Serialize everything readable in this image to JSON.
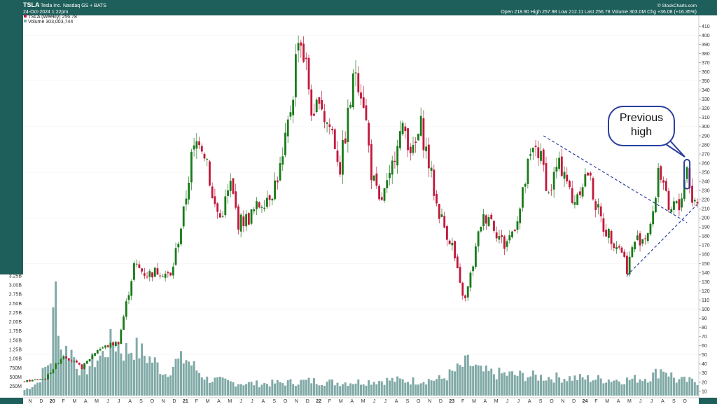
{
  "header": {
    "symbol": "TSLA",
    "company": "Tesla Inc.",
    "exchange": "Nasdaq GS + BATS",
    "date": "24-Oct-2024 1:22pm",
    "copyright": "© StockCharts.com",
    "quote": "Open 218.90  High 257.98  Low 212.11  Last 256.78  Volume 303.0M  Chg +36.08 (+16.35%)"
  },
  "legend": {
    "price_label": "TSLA (Weekly) 256.78",
    "volume_label": "Volume 303,003,744"
  },
  "annotation": {
    "line1": "Previous",
    "line2": "high"
  },
  "colors": {
    "up": "#1a7a1a",
    "down": "#c2183c",
    "volume": "#7fa9a6",
    "trendline": "#2a3f9e",
    "frame": "#1e5f5b"
  },
  "chart_data": {
    "type": "candlestick",
    "title": "TSLA Tesla Inc. (Weekly)",
    "ylim": [
      10,
      415
    ],
    "price_ticks": [
      10,
      20,
      30,
      40,
      50,
      60,
      70,
      80,
      90,
      100,
      110,
      120,
      130,
      140,
      150,
      160,
      170,
      180,
      190,
      200,
      210,
      220,
      230,
      240,
      250,
      260,
      270,
      280,
      290,
      300,
      310,
      320,
      330,
      340,
      350,
      360,
      370,
      380,
      390,
      400,
      410
    ],
    "volume_ticks": [
      "250M",
      "500M",
      "750M",
      "1.00B",
      "1.25B",
      "1.50B",
      "1.75B",
      "2.00B",
      "2.25B",
      "2.50B",
      "2.75B",
      "3.00B",
      "3.25B"
    ],
    "x_ticks": [
      "N",
      "D",
      "20",
      "F",
      "M",
      "A",
      "M",
      "J",
      "J",
      "A",
      "S",
      "O",
      "N",
      "D",
      "21",
      "F",
      "M",
      "A",
      "M",
      "J",
      "J",
      "A",
      "S",
      "O",
      "N",
      "D",
      "22",
      "F",
      "M",
      "A",
      "M",
      "J",
      "J",
      "A",
      "S",
      "O",
      "N",
      "D",
      "23",
      "F",
      "M",
      "A",
      "M",
      "J",
      "J",
      "A",
      "S",
      "O",
      "N",
      "D",
      "24",
      "F",
      "M",
      "A",
      "M",
      "J",
      "J",
      "A",
      "S",
      "O"
    ],
    "anchors": [
      {
        "week": 0,
        "price": 21
      },
      {
        "week": 8,
        "price": 24
      },
      {
        "week": 15,
        "price": 50
      },
      {
        "week": 22,
        "price": 36
      },
      {
        "week": 28,
        "price": 56
      },
      {
        "week": 36,
        "price": 64
      },
      {
        "week": 42,
        "price": 148
      },
      {
        "week": 47,
        "price": 138
      },
      {
        "week": 52,
        "price": 143
      },
      {
        "week": 56,
        "price": 135
      },
      {
        "week": 61,
        "price": 205
      },
      {
        "week": 64,
        "price": 265
      },
      {
        "week": 67,
        "price": 290
      },
      {
        "week": 70,
        "price": 265
      },
      {
        "week": 72,
        "price": 220
      },
      {
        "week": 75,
        "price": 200
      },
      {
        "week": 79,
        "price": 236
      },
      {
        "week": 82,
        "price": 195
      },
      {
        "week": 86,
        "price": 200
      },
      {
        "week": 91,
        "price": 218
      },
      {
        "week": 95,
        "price": 230
      },
      {
        "week": 99,
        "price": 262
      },
      {
        "week": 103,
        "price": 340
      },
      {
        "week": 105,
        "price": 405
      },
      {
        "week": 108,
        "price": 365
      },
      {
        "week": 111,
        "price": 300
      },
      {
        "week": 113,
        "price": 340
      },
      {
        "week": 115,
        "price": 310
      },
      {
        "week": 118,
        "price": 295
      },
      {
        "week": 121,
        "price": 255
      },
      {
        "week": 124,
        "price": 310
      },
      {
        "week": 127,
        "price": 365
      },
      {
        "week": 130,
        "price": 330
      },
      {
        "week": 133,
        "price": 250
      },
      {
        "week": 136,
        "price": 215
      },
      {
        "week": 140,
        "price": 240
      },
      {
        "week": 143,
        "price": 290
      },
      {
        "week": 146,
        "price": 295
      },
      {
        "week": 149,
        "price": 270
      },
      {
        "week": 152,
        "price": 300
      },
      {
        "week": 155,
        "price": 260
      },
      {
        "week": 158,
        "price": 215
      },
      {
        "week": 161,
        "price": 190
      },
      {
        "week": 164,
        "price": 170
      },
      {
        "week": 167,
        "price": 125
      },
      {
        "week": 169,
        "price": 110
      },
      {
        "week": 172,
        "price": 150
      },
      {
        "week": 175,
        "price": 195
      },
      {
        "week": 178,
        "price": 205
      },
      {
        "week": 181,
        "price": 185
      },
      {
        "week": 184,
        "price": 170
      },
      {
        "week": 187,
        "price": 185
      },
      {
        "week": 190,
        "price": 210
      },
      {
        "week": 193,
        "price": 255
      },
      {
        "week": 196,
        "price": 280
      },
      {
        "week": 199,
        "price": 255
      },
      {
        "week": 201,
        "price": 225
      },
      {
        "week": 204,
        "price": 255
      },
      {
        "week": 207,
        "price": 255
      },
      {
        "week": 210,
        "price": 215
      },
      {
        "week": 213,
        "price": 235
      },
      {
        "week": 216,
        "price": 250
      },
      {
        "week": 219,
        "price": 215
      },
      {
        "week": 222,
        "price": 190
      },
      {
        "week": 226,
        "price": 175
      },
      {
        "week": 229,
        "price": 165
      },
      {
        "week": 231,
        "price": 145
      },
      {
        "week": 234,
        "price": 175
      },
      {
        "week": 238,
        "price": 180
      },
      {
        "week": 241,
        "price": 200
      },
      {
        "week": 243,
        "price": 255
      },
      {
        "week": 245,
        "price": 240
      },
      {
        "week": 247,
        "price": 200
      },
      {
        "week": 249,
        "price": 215
      },
      {
        "week": 251,
        "price": 210
      },
      {
        "week": 253,
        "price": 245
      },
      {
        "week": 254,
        "price": 255
      },
      {
        "week": 256,
        "price": 220
      },
      {
        "week": 258,
        "price": 216
      }
    ],
    "volume_anchors": [
      {
        "week": 0,
        "vol": 150
      },
      {
        "week": 5,
        "vol": 350
      },
      {
        "week": 10,
        "vol": 1000
      },
      {
        "week": 12,
        "vol": 3100
      },
      {
        "week": 14,
        "vol": 1250
      },
      {
        "week": 18,
        "vol": 1200
      },
      {
        "week": 22,
        "vol": 600
      },
      {
        "week": 26,
        "vol": 900
      },
      {
        "week": 30,
        "vol": 1100
      },
      {
        "week": 34,
        "vol": 1500
      },
      {
        "week": 38,
        "vol": 1200
      },
      {
        "week": 42,
        "vol": 1300
      },
      {
        "week": 46,
        "vol": 1100
      },
      {
        "week": 50,
        "vol": 900
      },
      {
        "week": 54,
        "vol": 600
      },
      {
        "week": 58,
        "vol": 900
      },
      {
        "week": 62,
        "vol": 1000
      },
      {
        "week": 66,
        "vol": 700
      },
      {
        "week": 70,
        "vol": 450
      },
      {
        "week": 80,
        "vol": 350
      },
      {
        "week": 90,
        "vol": 320
      },
      {
        "week": 100,
        "vol": 350
      },
      {
        "week": 110,
        "vol": 400
      },
      {
        "week": 120,
        "vol": 350
      },
      {
        "week": 130,
        "vol": 380
      },
      {
        "week": 140,
        "vol": 420
      },
      {
        "week": 150,
        "vol": 400
      },
      {
        "week": 160,
        "vol": 450
      },
      {
        "week": 166,
        "vol": 700
      },
      {
        "week": 170,
        "vol": 900
      },
      {
        "week": 175,
        "vol": 650
      },
      {
        "week": 180,
        "vol": 600
      },
      {
        "week": 190,
        "vol": 550
      },
      {
        "week": 200,
        "vol": 500
      },
      {
        "week": 210,
        "vol": 480
      },
      {
        "week": 220,
        "vol": 450
      },
      {
        "week": 230,
        "vol": 420
      },
      {
        "week": 240,
        "vol": 500
      },
      {
        "week": 245,
        "vol": 750
      },
      {
        "week": 250,
        "vol": 420
      },
      {
        "week": 258,
        "vol": 380
      }
    ],
    "trendlines": [
      {
        "name": "upper",
        "from": {
          "week": 199,
          "price": 290
        },
        "to": {
          "week": 254,
          "price": 195
        }
      },
      {
        "name": "lower",
        "from": {
          "week": 231,
          "price": 137
        },
        "to": {
          "week": 258,
          "price": 215
        }
      }
    ],
    "highlight": {
      "week": 254,
      "price_low": 232,
      "price_high": 264
    }
  }
}
